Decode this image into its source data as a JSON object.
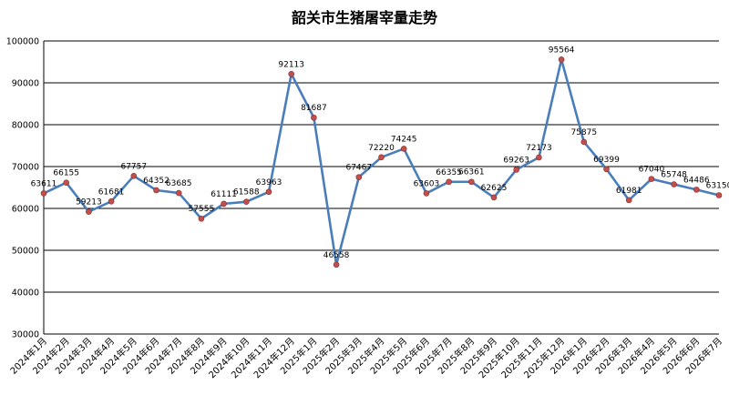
{
  "chart_data": {
    "type": "line",
    "title": "韶关市生猪屠宰量走势",
    "xlabel": "",
    "ylabel": "",
    "ylim": [
      30000,
      100000
    ],
    "yticks": [
      30000,
      40000,
      50000,
      60000,
      70000,
      80000,
      90000,
      100000
    ],
    "grid": true,
    "legend": "none",
    "categories": [
      "2024年1月",
      "2024年2月",
      "2024年3月",
      "2024年4月",
      "2024年5月",
      "2024年6月",
      "2024年7月",
      "2024年8月",
      "2024年9月",
      "2024年10月",
      "2024年11月",
      "2024年12月",
      "2025年1月",
      "2025年2月",
      "2025年3月",
      "2025年4月",
      "2025年5月",
      "2025年6月",
      "2025年7月",
      "2025年8月",
      "2025年9月",
      "2025年10月",
      "2025年11月",
      "2025年12月",
      "2026年1月",
      "2026年2月",
      "2026年3月",
      "2026年4月",
      "2026年5月",
      "2026年6月",
      "2026年7月"
    ],
    "series": [
      {
        "values": [
          63611,
          66155,
          59213,
          61681,
          67757,
          64352,
          63685,
          57555,
          61111,
          61588,
          63963,
          92113,
          81687,
          46558,
          67467,
          72220,
          74245,
          63603,
          66355,
          66361,
          62625,
          69263,
          72173,
          95564,
          75875,
          69399,
          61981,
          67040,
          65748,
          64486,
          63150
        ],
        "color": "#4a7ebb",
        "marker_color": "#c0504d"
      }
    ]
  }
}
